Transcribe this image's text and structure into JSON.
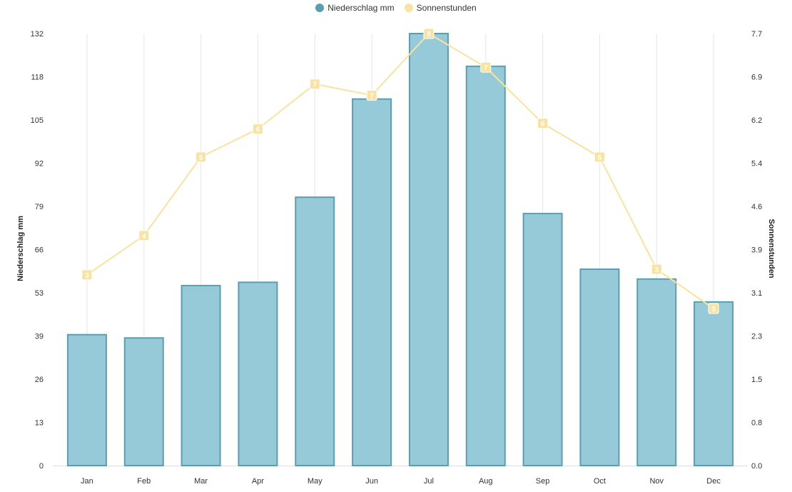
{
  "chart_data": {
    "type": "bar",
    "categories": [
      "Jan",
      "Feb",
      "Mar",
      "Apr",
      "May",
      "Jun",
      "Jul",
      "Aug",
      "Sep",
      "Oct",
      "Nov",
      "Dec"
    ],
    "series": [
      {
        "name": "Niederschlag mm",
        "type": "bar",
        "axis": "left",
        "color": "#96CAD9",
        "border_color": "#5A9FB0",
        "values": [
          40,
          39,
          55,
          56,
          82,
          112,
          132,
          122,
          77,
          60,
          57,
          50
        ]
      },
      {
        "name": "Sonnenstunden",
        "type": "line",
        "axis": "right",
        "color": "#F8E3A0",
        "values": [
          3.4,
          4.1,
          5.5,
          6.0,
          6.8,
          6.6,
          7.7,
          7.1,
          6.1,
          5.5,
          3.5,
          2.8
        ],
        "point_labels": [
          "3",
          "4",
          "5",
          "6",
          "7",
          "7",
          "8",
          "7",
          "6",
          "5",
          "3",
          "3"
        ]
      }
    ],
    "ylabel": "Niederschlag mm",
    "y2label": "Sonnenstunden",
    "ylim": [
      0,
      132
    ],
    "y2lim": [
      0,
      7.7
    ],
    "yticks": [
      "0",
      "13",
      "26",
      "39",
      "53",
      "66",
      "79",
      "92",
      "105",
      "118",
      "132"
    ],
    "y2ticks": [
      "0.0",
      "0.8",
      "1.5",
      "2.3",
      "3.1",
      "3.9",
      "4.6",
      "5.4",
      "6.2",
      "6.9",
      "7.7"
    ],
    "grid": "vertical",
    "legend": "top-center"
  }
}
